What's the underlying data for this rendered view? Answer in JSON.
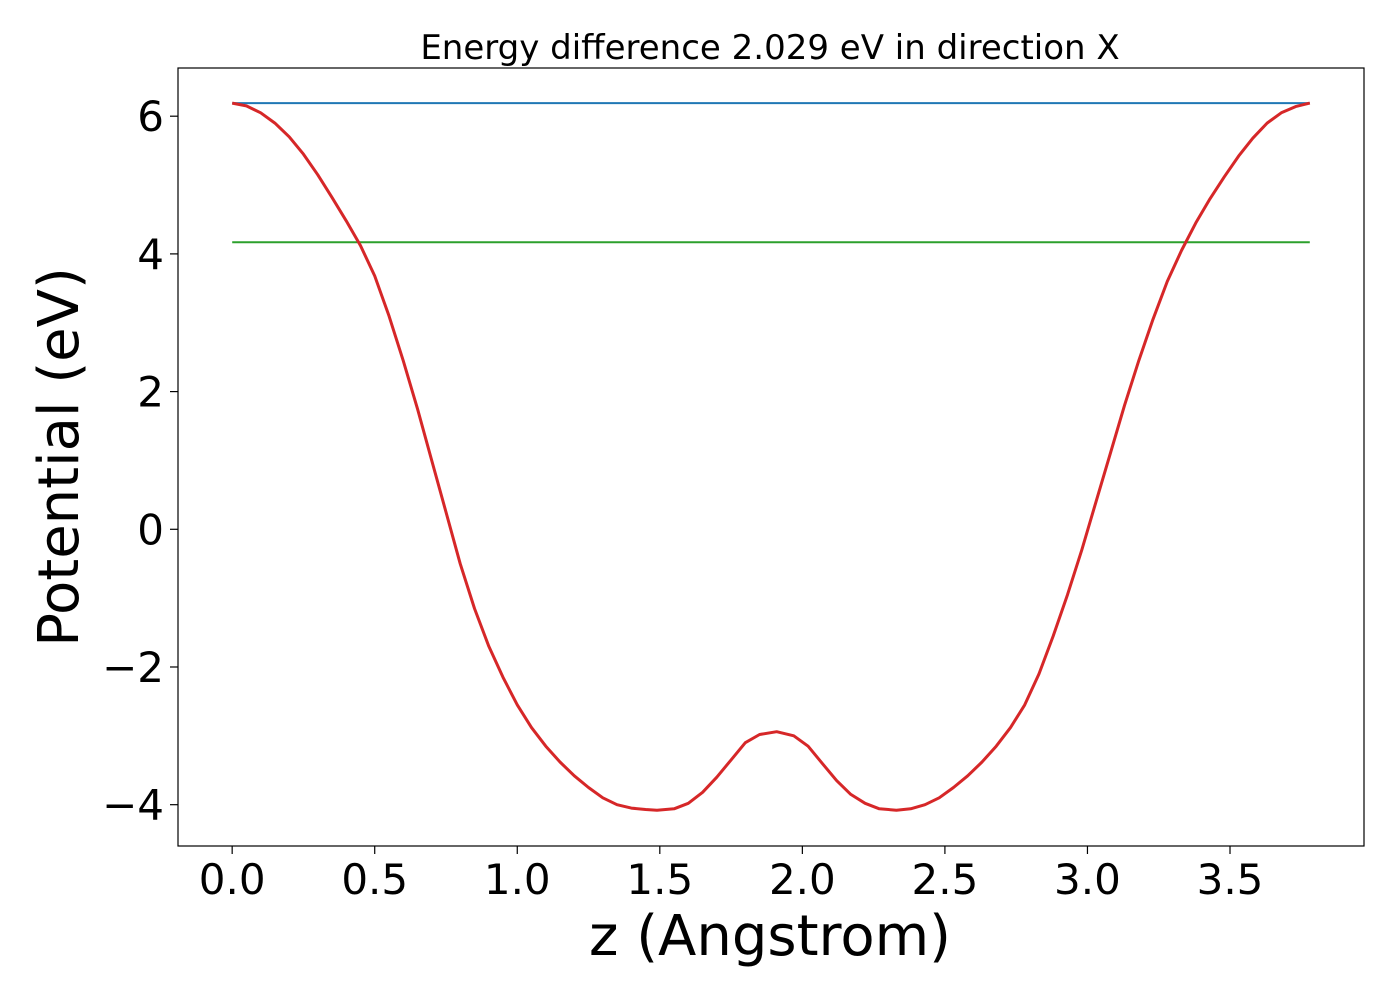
{
  "chart_data": {
    "type": "line",
    "title": "Energy difference 2.029 eV in direction X",
    "xlabel": "z (Angstrom)",
    "ylabel": "Potential (eV)",
    "xlim": [
      -0.19,
      3.97
    ],
    "ylim": [
      -4.6,
      6.7
    ],
    "xticks": [
      0.0,
      0.5,
      1.0,
      1.5,
      2.0,
      2.5,
      3.0,
      3.5
    ],
    "xtick_labels": [
      "0.0",
      "0.5",
      "1.0",
      "1.5",
      "2.0",
      "2.5",
      "3.0",
      "3.5"
    ],
    "yticks": [
      -4,
      -2,
      0,
      2,
      4,
      6
    ],
    "ytick_labels": [
      "−4",
      "−2",
      "0",
      "2",
      "4",
      "6"
    ],
    "grid": false,
    "series": [
      {
        "color": "#1f77b4",
        "x": [
          0.0,
          3.78
        ],
        "y": [
          6.19,
          6.19
        ]
      },
      {
        "color": "#2ca02c",
        "x": [
          0.0,
          3.78
        ],
        "y": [
          4.17,
          4.17
        ]
      },
      {
        "color": "#d62728",
        "x": [
          0.0,
          0.05,
          0.1,
          0.15,
          0.2,
          0.25,
          0.3,
          0.35,
          0.4,
          0.45,
          0.5,
          0.55,
          0.6,
          0.65,
          0.7,
          0.75,
          0.8,
          0.85,
          0.9,
          0.95,
          1.0,
          1.05,
          1.1,
          1.15,
          1.2,
          1.25,
          1.3,
          1.35,
          1.4,
          1.45,
          1.49,
          1.55,
          1.6,
          1.65,
          1.7,
          1.75,
          1.8,
          1.85,
          1.91,
          1.97,
          2.02,
          2.07,
          2.12,
          2.17,
          2.22,
          2.27,
          2.33,
          2.38,
          2.43,
          2.48,
          2.53,
          2.58,
          2.63,
          2.68,
          2.73,
          2.78,
          2.83,
          2.88,
          2.93,
          2.98,
          3.03,
          3.08,
          3.13,
          3.18,
          3.23,
          3.28,
          3.33,
          3.38,
          3.43,
          3.48,
          3.53,
          3.58,
          3.63,
          3.68,
          3.73,
          3.78
        ],
        "y": [
          6.19,
          6.15,
          6.05,
          5.9,
          5.7,
          5.45,
          5.15,
          4.82,
          4.48,
          4.12,
          3.68,
          3.1,
          2.45,
          1.75,
          1.0,
          0.25,
          -0.5,
          -1.15,
          -1.7,
          -2.15,
          -2.55,
          -2.88,
          -3.15,
          -3.38,
          -3.58,
          -3.75,
          -3.9,
          -4.0,
          -4.05,
          -4.07,
          -4.08,
          -4.06,
          -3.98,
          -3.82,
          -3.6,
          -3.35,
          -3.1,
          -2.98,
          -2.94,
          -3.0,
          -3.15,
          -3.4,
          -3.65,
          -3.85,
          -3.98,
          -4.06,
          -4.08,
          -4.06,
          -4.0,
          -3.9,
          -3.75,
          -3.58,
          -3.38,
          -3.15,
          -2.88,
          -2.55,
          -2.1,
          -1.55,
          -0.95,
          -0.3,
          0.4,
          1.1,
          1.8,
          2.45,
          3.05,
          3.6,
          4.05,
          4.45,
          4.8,
          5.12,
          5.42,
          5.68,
          5.9,
          6.05,
          6.14,
          6.19
        ]
      }
    ]
  }
}
